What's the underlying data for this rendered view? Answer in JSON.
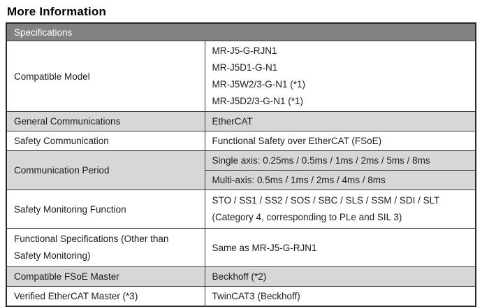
{
  "page_title": "More Information",
  "table": {
    "header": "Specifications",
    "colors": {
      "header_bg": "#828282",
      "header_text": "#ffffff",
      "shaded_row_bg": "#d7d7d7",
      "border": "#3b3b3b",
      "text": "#1c1c1c"
    },
    "rows": {
      "compatible_model": {
        "label": "Compatible Model",
        "values": [
          "MR-J5-G-RJN1",
          "MR-J5D1-G-N1",
          "MR-J5W2/3-G-N1 (*1)",
          "MR-J5D2/3-G-N1 (*1)"
        ]
      },
      "general_communications": {
        "label": "General Communications",
        "value": "EtherCAT"
      },
      "safety_communication": {
        "label": "Safety Communication",
        "value": "Functional Safety over EtherCAT (FSoE)"
      },
      "communication_period": {
        "label": "Communication Period",
        "values": [
          "Single axis: 0.25ms / 0.5ms / 1ms / 2ms / 5ms / 8ms",
          "Multi-axis: 0.5ms / 1ms / 2ms / 4ms / 8ms"
        ]
      },
      "safety_monitoring_function": {
        "label": "Safety Monitoring Function",
        "value_line1": "STO / SS1 / SS2 / SOS / SBC / SLS / SSM / SDI / SLT",
        "value_line2": "(Category 4, corresponding to PLe and SIL 3)"
      },
      "functional_specifications": {
        "label": "Functional Specifications (Other than Safety Monitoring)",
        "value": "Same as MR-J5-G-RJN1"
      },
      "compatible_fsoe_master": {
        "label": "Compatible FSoE Master",
        "value": "Beckhoff (*2)"
      },
      "verified_ethercat_master": {
        "label": "Verified EtherCAT Master (*3)",
        "value": "TwinCAT3 (Beckhoff)"
      }
    }
  }
}
